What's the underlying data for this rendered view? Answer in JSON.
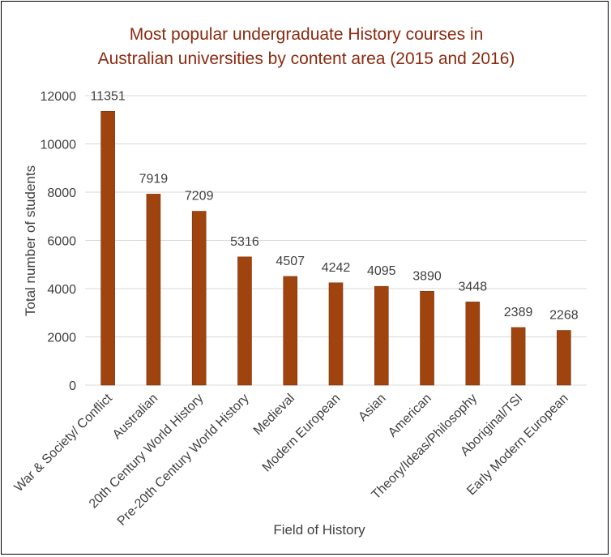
{
  "colors": {
    "bar": "#a0440f",
    "bar_stroke": "#7a3209",
    "title": "#8b2a10",
    "grid": "#d9d9d9",
    "text": "#404040"
  },
  "chart_data": {
    "type": "bar",
    "title_lines": [
      "Most popular undergraduate History courses in",
      "Australian universities by content area (2015 and 2016)"
    ],
    "xlabel": "Field of History",
    "ylabel": "Total number of students",
    "ylim": [
      0,
      12000
    ],
    "yticks": [
      0,
      2000,
      4000,
      6000,
      8000,
      10000,
      12000
    ],
    "grid": true,
    "legend": "none",
    "categories": [
      "War & Society/ Conflict",
      "Australian",
      "20th Century World History",
      "Pre-20th Century World History",
      "Medieval",
      "Modern European",
      "Asian",
      "American",
      "Theory/Ideas/Philosophy",
      "Aboriginal/TSI",
      "Early Modern European"
    ],
    "values": [
      11351,
      7919,
      7209,
      5316,
      4507,
      4242,
      4095,
      3890,
      3448,
      2389,
      2268
    ]
  }
}
